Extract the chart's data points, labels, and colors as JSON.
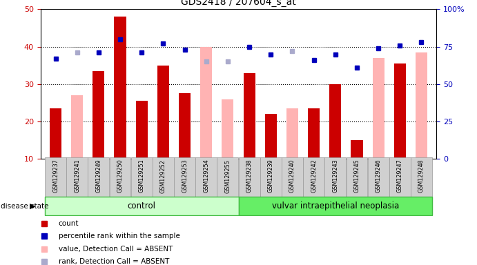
{
  "title": "GDS2418 / 207604_s_at",
  "samples": [
    "GSM129237",
    "GSM129241",
    "GSM129249",
    "GSM129250",
    "GSM129251",
    "GSM129252",
    "GSM129253",
    "GSM129254",
    "GSM129255",
    "GSM129238",
    "GSM129239",
    "GSM129240",
    "GSM129242",
    "GSM129243",
    "GSM129245",
    "GSM129246",
    "GSM129247",
    "GSM129248"
  ],
  "count_values": [
    23.5,
    null,
    33.5,
    48.0,
    25.5,
    35.0,
    27.5,
    null,
    null,
    33.0,
    22.0,
    null,
    23.5,
    30.0,
    15.0,
    null,
    35.5,
    null
  ],
  "absent_value_values": [
    null,
    27.0,
    null,
    null,
    null,
    null,
    null,
    40.0,
    26.0,
    null,
    null,
    23.5,
    null,
    null,
    null,
    37.0,
    null,
    38.5
  ],
  "percentile_rank": [
    67,
    null,
    71,
    80,
    71,
    77,
    73,
    null,
    null,
    75,
    70,
    null,
    66,
    70,
    61,
    74,
    76,
    78
  ],
  "absent_rank_values": [
    null,
    71,
    null,
    null,
    null,
    null,
    null,
    65,
    65,
    null,
    null,
    72,
    null,
    null,
    null,
    null,
    null,
    null
  ],
  "group_labels": [
    "control",
    "vulvar intraepithelial neoplasia"
  ],
  "n_control": 9,
  "ylim_left": [
    10,
    50
  ],
  "ylim_right": [
    0,
    100
  ],
  "yticks_left": [
    10,
    20,
    30,
    40,
    50
  ],
  "yticks_right": [
    0,
    25,
    50,
    75,
    100
  ],
  "ytick_labels_right": [
    "0",
    "25",
    "50",
    "75",
    "100%"
  ],
  "bar_color": "#cc0000",
  "absent_bar_color": "#ffb3b3",
  "rank_color": "#0000bb",
  "absent_rank_color": "#aaaacc",
  "bg_color": "#ffffff",
  "tick_bg": "#d0d0d0",
  "group_bg_control": "#ccffcc",
  "group_bg_neoplasia": "#66ee66",
  "bar_width": 0.55,
  "disease_state_label": "disease state",
  "legend_items": [
    {
      "label": "count",
      "color": "#cc0000"
    },
    {
      "label": "percentile rank within the sample",
      "color": "#0000bb"
    },
    {
      "label": "value, Detection Call = ABSENT",
      "color": "#ffb3b3"
    },
    {
      "label": "rank, Detection Call = ABSENT",
      "color": "#aaaacc"
    }
  ]
}
